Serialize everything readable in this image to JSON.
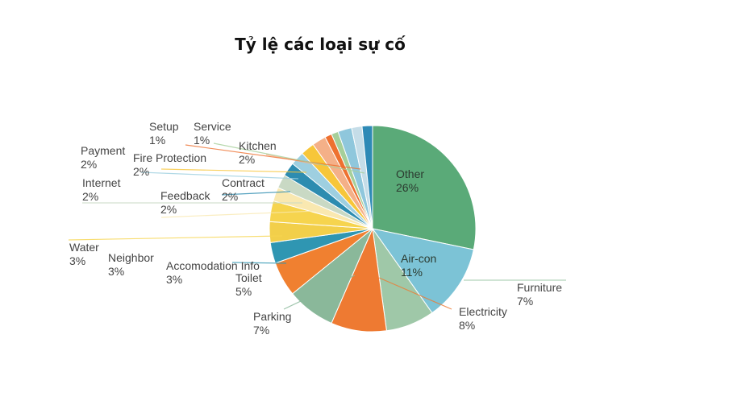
{
  "chart_data": {
    "type": "pie",
    "title": "Tỷ lệ các loại sự cố",
    "slices": [
      {
        "name": "Other",
        "label": "26%",
        "value": 26,
        "color": "#5aaa78"
      },
      {
        "name": "Air-con",
        "label": "11%",
        "value": 11,
        "color": "#7cc3d6"
      },
      {
        "name": "Furniture",
        "label": "7%",
        "value": 7,
        "color": "#9fc8a8"
      },
      {
        "name": "Electricity",
        "label": "8%",
        "value": 8,
        "color": "#ee7a32"
      },
      {
        "name": "Parking",
        "label": "7%",
        "value": 7,
        "color": "#8ab89a"
      },
      {
        "name": "Toilet",
        "label": "5%",
        "value": 5,
        "color": "#f08030"
      },
      {
        "name": "Accomodation Info",
        "label": "3%",
        "value": 3,
        "color": "#2f96b2"
      },
      {
        "name": "Neighbor",
        "label": "3%",
        "value": 3,
        "color": "#f2cf4a"
      },
      {
        "name": "Water",
        "label": "3%",
        "value": 3,
        "color": "#f6d44e"
      },
      {
        "name": "Feedback",
        "label": "2%",
        "value": 2,
        "color": "#f9e8b0"
      },
      {
        "name": "Internet",
        "label": "2%",
        "value": 2,
        "color": "#c9d9c4"
      },
      {
        "name": "Contract",
        "label": "2%",
        "value": 2,
        "color": "#2d8cb0"
      },
      {
        "name": "Payment",
        "label": "2%",
        "value": 2,
        "color": "#9ecfe0"
      },
      {
        "name": "Fire Protection",
        "label": "2%",
        "value": 2,
        "color": "#f7c63a"
      },
      {
        "name": "Kitchen",
        "label": "2%",
        "value": 2,
        "color": "#f4b088"
      },
      {
        "name": "Setup",
        "label": "1%",
        "value": 1,
        "color": "#ee7130"
      },
      {
        "name": "Service",
        "label": "1%",
        "value": 1,
        "color": "#a6cf9a"
      },
      {
        "name": "",
        "label": "",
        "value": 2,
        "color": "#8fc7dc"
      },
      {
        "name": "",
        "label": "",
        "value": 1.5,
        "color": "#c5dde8"
      },
      {
        "name": "",
        "label": "",
        "value": 1.5,
        "color": "#2e8ab6"
      }
    ]
  }
}
